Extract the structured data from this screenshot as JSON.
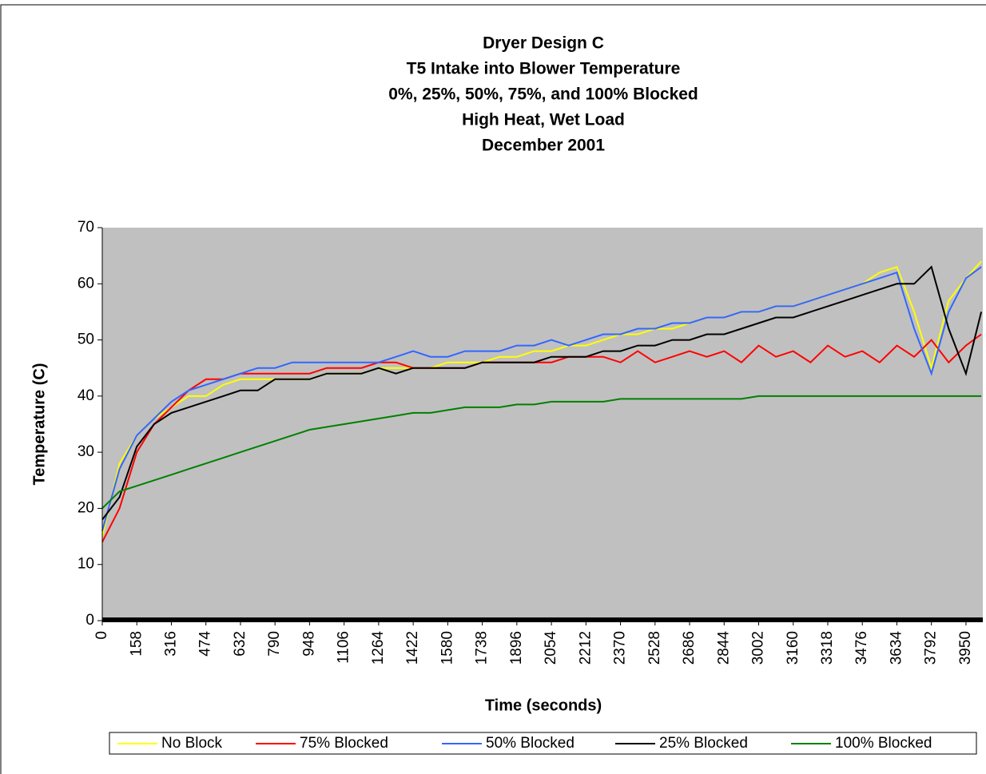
{
  "chart_data": {
    "type": "line",
    "title": [
      "Dryer Design C",
      "T5 Intake into Blower Temperature",
      "0%, 25%, 50%, 75%, and 100% Blocked",
      "High Heat, Wet Load",
      "December 2001"
    ],
    "x_label": "Time (seconds)",
    "y_label": "Temperature (C)",
    "x": [
      0,
      79,
      158,
      237,
      316,
      395,
      474,
      553,
      632,
      711,
      790,
      869,
      948,
      1027,
      1106,
      1185,
      1264,
      1343,
      1422,
      1501,
      1580,
      1659,
      1738,
      1817,
      1896,
      1975,
      2054,
      2133,
      2212,
      2291,
      2370,
      2449,
      2528,
      2607,
      2686,
      2765,
      2844,
      2923,
      3002,
      3081,
      3160,
      3239,
      3318,
      3397,
      3476,
      3555,
      3634,
      3713,
      3792,
      3871,
      3950,
      4020
    ],
    "series": [
      {
        "name": "No Block",
        "color": "#ffff00",
        "values": [
          15,
          28,
          33,
          36,
          38,
          40,
          40,
          42,
          43,
          43,
          43,
          43,
          43,
          44,
          44,
          44,
          45,
          45,
          45,
          45,
          46,
          46,
          46,
          47,
          47,
          48,
          48,
          49,
          49,
          50,
          51,
          51,
          52,
          52,
          53,
          54,
          54,
          55,
          55,
          56,
          56,
          57,
          58,
          59,
          60,
          62,
          63,
          55,
          45,
          57,
          61,
          64
        ]
      },
      {
        "name": "75% Blocked",
        "color": "#ff0000",
        "values": [
          14,
          20,
          30,
          35,
          38,
          41,
          43,
          43,
          44,
          44,
          44,
          44,
          44,
          45,
          45,
          45,
          46,
          46,
          45,
          45,
          45,
          45,
          46,
          46,
          46,
          46,
          46,
          47,
          47,
          47,
          46,
          48,
          46,
          47,
          48,
          47,
          48,
          46,
          49,
          47,
          48,
          46,
          49,
          47,
          48,
          46,
          49,
          47,
          50,
          46,
          49,
          51
        ]
      },
      {
        "name": "50% Blocked",
        "color": "#3366ff",
        "values": [
          16,
          27,
          33,
          36,
          39,
          41,
          42,
          43,
          44,
          45,
          45,
          46,
          46,
          46,
          46,
          46,
          46,
          47,
          48,
          47,
          47,
          48,
          48,
          48,
          49,
          49,
          50,
          49,
          50,
          51,
          51,
          52,
          52,
          53,
          53,
          54,
          54,
          55,
          55,
          56,
          56,
          57,
          58,
          59,
          60,
          61,
          62,
          52,
          44,
          55,
          61,
          63
        ]
      },
      {
        "name": "25% Blocked",
        "color": "#000000",
        "values": [
          18,
          22,
          31,
          35,
          37,
          38,
          39,
          40,
          41,
          41,
          43,
          43,
          43,
          44,
          44,
          44,
          45,
          44,
          45,
          45,
          45,
          45,
          46,
          46,
          46,
          46,
          47,
          47,
          47,
          48,
          48,
          49,
          49,
          50,
          50,
          51,
          51,
          52,
          53,
          54,
          54,
          55,
          56,
          57,
          58,
          59,
          60,
          60,
          63,
          52,
          44,
          55
        ]
      },
      {
        "name": "100% Blocked",
        "color": "#008000",
        "values": [
          20,
          23,
          24,
          25,
          26,
          27,
          28,
          29,
          30,
          31,
          32,
          33,
          34,
          34.5,
          35,
          35.5,
          36,
          36.5,
          37,
          37,
          37.5,
          38,
          38,
          38,
          38.5,
          38.5,
          39,
          39,
          39,
          39,
          39.5,
          39.5,
          39.5,
          39.5,
          39.5,
          39.5,
          39.5,
          39.5,
          40,
          40,
          40,
          40,
          40,
          40,
          40,
          40,
          40,
          40,
          40,
          40,
          40,
          40
        ]
      }
    ],
    "xlim": [
      0,
      4027
    ],
    "ylim": [
      0,
      70
    ],
    "xticks": [
      0,
      158,
      316,
      474,
      632,
      790,
      948,
      1106,
      1264,
      1422,
      1580,
      1738,
      1896,
      2054,
      2212,
      2370,
      2528,
      2686,
      2844,
      3002,
      3160,
      3318,
      3476,
      3634,
      3792,
      3950
    ],
    "yticks": [
      0,
      10,
      20,
      30,
      40,
      50,
      60,
      70
    ],
    "plot_background": "#c0c0c0",
    "legend": "bottom"
  }
}
